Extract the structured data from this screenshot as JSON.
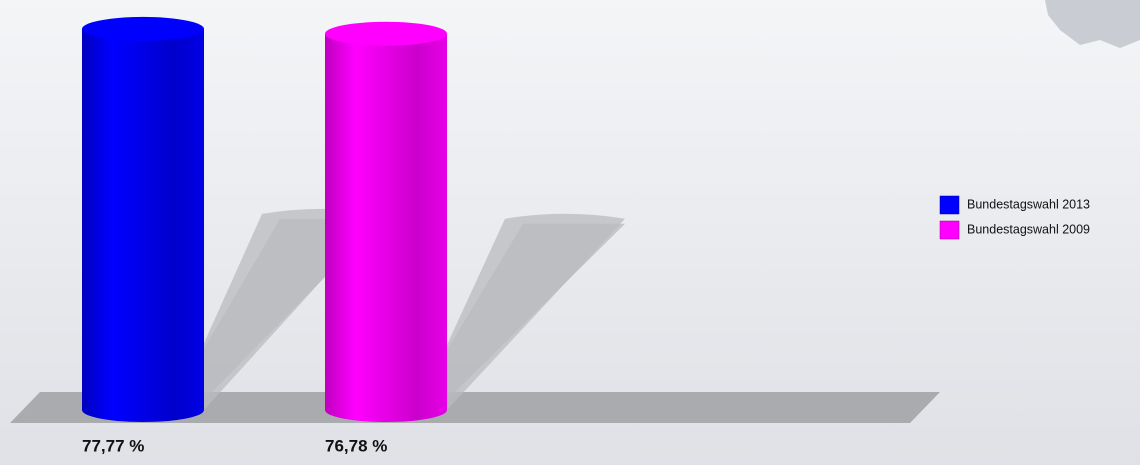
{
  "chart_data": {
    "type": "bar",
    "series": [
      {
        "name": "Bundestagswahl 2013",
        "color": "#0000ff",
        "values": [
          77.77
        ],
        "value_labels": [
          "77,77 %"
        ]
      },
      {
        "name": "Bundestagswahl 2009",
        "color": "#ff00ff",
        "values": [
          76.78
        ],
        "value_labels": [
          "76,78 %"
        ]
      }
    ]
  }
}
